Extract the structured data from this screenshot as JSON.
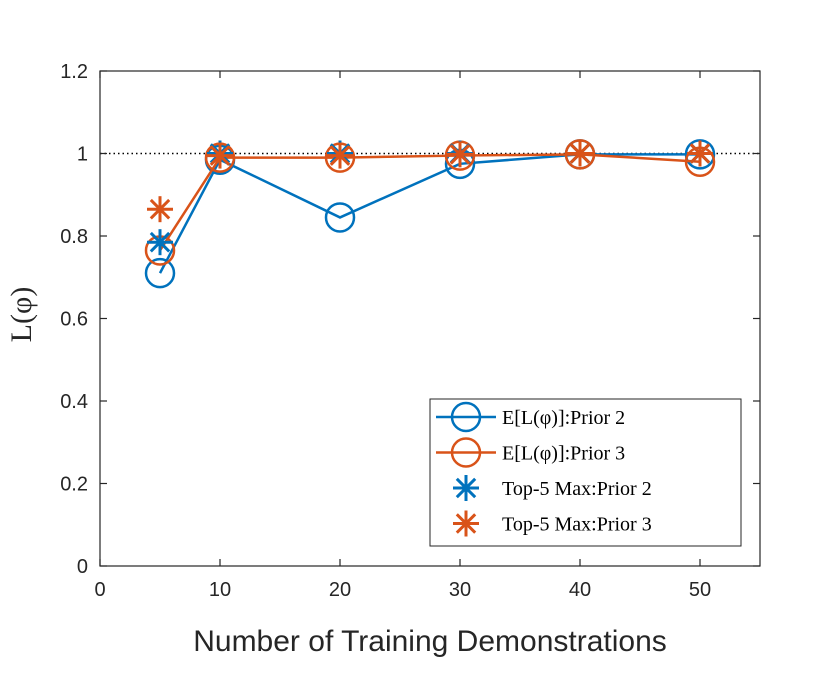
{
  "chart_data": {
    "type": "line",
    "title": "",
    "xlabel": "Number of Training Demonstrations",
    "ylabel": "L(φ)",
    "xlim": [
      0,
      55
    ],
    "ylim": [
      0,
      1.2
    ],
    "x_ticks": [
      0,
      10,
      20,
      30,
      40,
      50
    ],
    "y_ticks": [
      0,
      0.2,
      0.4,
      0.6,
      0.8,
      1,
      1.2
    ],
    "x_tick_labels": [
      "0",
      "10",
      "20",
      "30",
      "40",
      "50"
    ],
    "y_tick_labels": [
      "0",
      "0.2",
      "0.4",
      "0.6",
      "0.8",
      "1",
      "1.2"
    ],
    "reference_line": {
      "y": 1,
      "style": "dotted"
    },
    "grid": false,
    "legend_position": "bottom-right",
    "series": [
      {
        "name": "E[L(φ)]:Prior 2",
        "color": "#0072BD",
        "marker": "circle",
        "line": true,
        "x": [
          5,
          10,
          20,
          30,
          40,
          50
        ],
        "values": [
          0.71,
          0.985,
          0.845,
          0.975,
          0.998,
          0.998
        ]
      },
      {
        "name": "E[L(φ)]:Prior 3",
        "color": "#D95319",
        "marker": "circle",
        "line": true,
        "x": [
          5,
          10,
          20,
          30,
          40,
          50
        ],
        "values": [
          0.765,
          0.99,
          0.99,
          0.995,
          0.998,
          0.98
        ]
      },
      {
        "name": "Top-5 Max:Prior 2",
        "color": "#0072BD",
        "marker": "asterisk",
        "line": false,
        "x": [
          5,
          10,
          20,
          30,
          40,
          50
        ],
        "values": [
          0.785,
          1.0,
          1.0,
          1.0,
          1.0,
          1.0
        ]
      },
      {
        "name": "Top-5 Max:Prior 3",
        "color": "#D95319",
        "marker": "asterisk",
        "line": false,
        "x": [
          5,
          10,
          20,
          30,
          40,
          50
        ],
        "values": [
          0.865,
          0.995,
          0.995,
          0.998,
          1.0,
          1.0
        ]
      }
    ]
  }
}
